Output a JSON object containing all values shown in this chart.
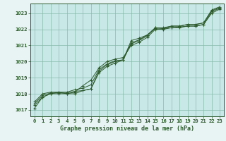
{
  "title": "Graphe pression niveau de la mer (hPa)",
  "bg_color": "#c8e8e8",
  "plot_bg_color": "#c8e8e8",
  "outer_bg": "#e8f4f4",
  "grid_color": "#88bbaa",
  "line_color": "#2d5a2d",
  "x_ticks": [
    0,
    1,
    2,
    3,
    4,
    5,
    6,
    7,
    8,
    9,
    10,
    11,
    12,
    13,
    14,
    15,
    16,
    17,
    18,
    19,
    20,
    21,
    22,
    23
  ],
  "y_ticks": [
    1017,
    1018,
    1019,
    1020,
    1021,
    1022,
    1023
  ],
  "ylim": [
    1016.6,
    1023.6
  ],
  "xlim": [
    -0.5,
    23.5
  ],
  "series": [
    [
      1017.3,
      1017.8,
      1018.0,
      1018.0,
      1018.0,
      1018.0,
      1018.2,
      1018.3,
      1019.3,
      1019.7,
      1019.9,
      1020.1,
      1021.3,
      1021.45,
      1021.65,
      1022.1,
      1022.05,
      1022.1,
      1022.15,
      1022.2,
      1022.2,
      1022.3,
      1023.1,
      1023.3
    ],
    [
      1017.1,
      1017.8,
      1018.0,
      1018.1,
      1018.0,
      1018.1,
      1018.5,
      1018.85,
      1019.6,
      1020.0,
      1020.15,
      1020.25,
      1021.0,
      1021.2,
      1021.5,
      1022.0,
      1022.0,
      1022.1,
      1022.1,
      1022.2,
      1022.2,
      1022.3,
      1023.0,
      1023.25
    ],
    [
      1017.4,
      1017.9,
      1018.05,
      1018.05,
      1018.05,
      1018.15,
      1018.2,
      1018.3,
      1019.4,
      1019.8,
      1020.0,
      1020.1,
      1021.1,
      1021.3,
      1021.6,
      1022.1,
      1022.05,
      1022.2,
      1022.2,
      1022.3,
      1022.3,
      1022.4,
      1023.15,
      1023.35
    ],
    [
      1017.5,
      1018.0,
      1018.1,
      1018.1,
      1018.1,
      1018.25,
      1018.35,
      1018.55,
      1019.5,
      1019.85,
      1020.05,
      1020.1,
      1021.15,
      1021.35,
      1021.65,
      1022.05,
      1022.1,
      1022.2,
      1022.2,
      1022.3,
      1022.3,
      1022.4,
      1023.2,
      1023.4
    ]
  ],
  "marker_series": [
    0,
    1
  ],
  "title_fontsize": 6.0,
  "tick_fontsize": 5.2
}
